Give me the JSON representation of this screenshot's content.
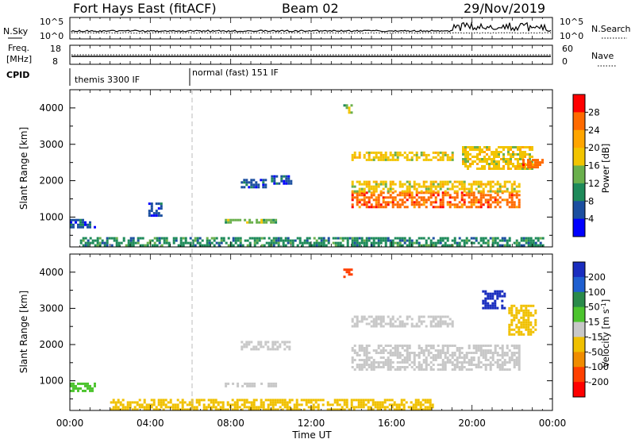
{
  "header": {
    "title": "Fort Hays East (fitACF)",
    "beam": "Beam 02",
    "date": "29/Nov/2019"
  },
  "top_panels": {
    "nsky_label": "N.Sky",
    "nsky_ticks": [
      "10^5",
      "10^0"
    ],
    "nsearch_label": "N.Search",
    "nsearch_ticks": [
      "10^5",
      "10^0"
    ],
    "freq_label": "Freq.",
    "freq_unit": "[MHz]",
    "freq_ticks": [
      "18",
      "8"
    ],
    "nave_label": "Nave",
    "nave_ticks": [
      "60",
      "0"
    ],
    "cpid_label": "CPID",
    "cpid_segments": [
      {
        "start_hour": 0,
        "label": "themis 3300 IF"
      },
      {
        "start_hour": 6,
        "label": "normal (fast) 151 IF"
      }
    ]
  },
  "x_axis": {
    "label": "Time UT",
    "ticks": [
      "00:00",
      "04:00",
      "08:00",
      "12:00",
      "16:00",
      "20:00",
      "00:00"
    ],
    "range_hours": [
      0,
      24
    ]
  },
  "y_axis": {
    "label": "Slant Range [km]",
    "ticks": [
      "1000",
      "2000",
      "3000",
      "4000"
    ],
    "range_km": [
      180,
      4500
    ]
  },
  "colorbars": {
    "power": {
      "label": "Power [dB]",
      "ticks": [
        "28",
        "24",
        "20",
        "16",
        "12",
        "8",
        "4"
      ],
      "colors": [
        "#ff0000",
        "#ff6a00",
        "#ffa500",
        "#f2c400",
        "#6ab04c",
        "#1e8a5a",
        "#1c4fa0",
        "#0000ff"
      ]
    },
    "velocity": {
      "label": "Velocity [m s",
      "label_sup": "-1",
      "label_end": "]",
      "ticks": [
        "200",
        "100",
        "50",
        "15",
        "-15",
        "-50",
        "-100",
        "-200"
      ],
      "colors": [
        "#1a2dbf",
        "#1f5fd0",
        "#2a8a4a",
        "#4cc42e",
        "#c8c8c8",
        "#f0c000",
        "#f08c00",
        "#ff4000",
        "#ff0000"
      ]
    }
  },
  "chart_data": [
    {
      "type": "heatmap",
      "title": "Power",
      "xlabel": "",
      "ylabel": "Slant Range [km]",
      "xlim_hours": [
        0,
        24
      ],
      "ylim_km": [
        180,
        4500
      ],
      "regions": [
        {
          "t0": 0.0,
          "t1": 1.2,
          "r0": 700,
          "r1": 950,
          "value_db": 6
        },
        {
          "t0": 3.9,
          "t1": 4.5,
          "r0": 1050,
          "r1": 1400,
          "value_db": 7
        },
        {
          "t0": 7.7,
          "t1": 10.2,
          "r0": 850,
          "r1": 950,
          "value_db": 14
        },
        {
          "t0": 8.5,
          "t1": 9.7,
          "r0": 1850,
          "r1": 2050,
          "value_db": 8
        },
        {
          "t0": 10.0,
          "t1": 11.0,
          "r0": 1900,
          "r1": 2150,
          "value_db": 8
        },
        {
          "t0": 0.5,
          "t1": 23.5,
          "r0": 200,
          "r1": 450,
          "value_db": 10
        },
        {
          "t0": 13.6,
          "t1": 14.0,
          "r0": 3900,
          "r1": 4100,
          "value_db": 14
        },
        {
          "t0": 14.0,
          "t1": 22.3,
          "r0": 1300,
          "r1": 1700,
          "value_db": 26
        },
        {
          "t0": 14.0,
          "t1": 22.3,
          "r0": 1700,
          "r1": 2000,
          "value_db": 17
        },
        {
          "t0": 14.0,
          "t1": 19.0,
          "r0": 2550,
          "r1": 2800,
          "value_db": 17
        },
        {
          "t0": 19.5,
          "t1": 23.0,
          "r0": 2300,
          "r1": 2950,
          "value_db": 18
        },
        {
          "t0": 22.5,
          "t1": 23.5,
          "r0": 2400,
          "r1": 2600,
          "value_db": 26
        }
      ]
    },
    {
      "type": "heatmap",
      "title": "Velocity",
      "xlabel": "Time UT",
      "ylabel": "Slant Range [km]",
      "xlim_hours": [
        0,
        24
      ],
      "ylim_km": [
        180,
        4500
      ],
      "regions": [
        {
          "t0": 0.0,
          "t1": 1.2,
          "r0": 700,
          "r1": 950,
          "value_ms": 20
        },
        {
          "t0": 7.7,
          "t1": 10.2,
          "r0": 850,
          "r1": 950,
          "value_ms": 0
        },
        {
          "t0": 8.5,
          "t1": 11.0,
          "r0": 1850,
          "r1": 2100,
          "value_ms": 0
        },
        {
          "t0": 2.0,
          "t1": 18.0,
          "r0": 200,
          "r1": 500,
          "value_ms": -40
        },
        {
          "t0": 13.6,
          "t1": 14.0,
          "r0": 3900,
          "r1": 4100,
          "value_ms": -200
        },
        {
          "t0": 14.0,
          "t1": 22.3,
          "r0": 1300,
          "r1": 2000,
          "value_ms": 0
        },
        {
          "t0": 14.0,
          "t1": 19.0,
          "r0": 2500,
          "r1": 2800,
          "value_ms": 0
        },
        {
          "t0": 20.5,
          "t1": 21.6,
          "r0": 3000,
          "r1": 3500,
          "value_ms": 200
        },
        {
          "t0": 21.8,
          "t1": 23.2,
          "r0": 2300,
          "r1": 3100,
          "value_ms": -50
        }
      ]
    }
  ]
}
